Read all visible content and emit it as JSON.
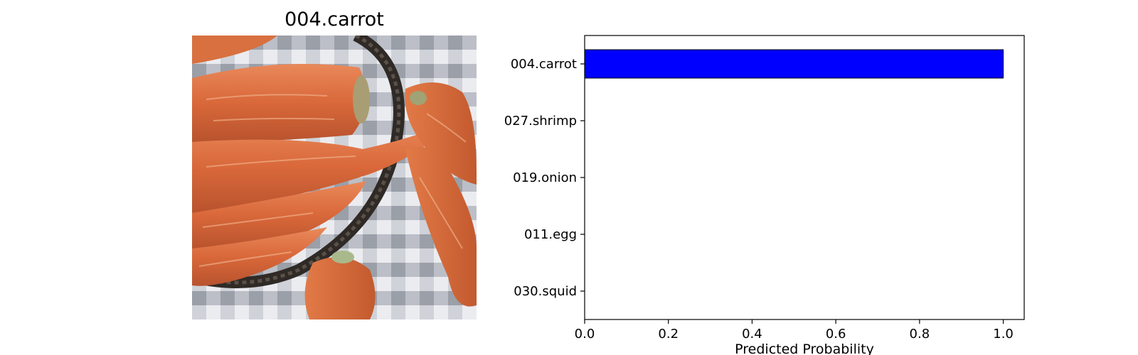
{
  "image_panel": {
    "title": "004.carrot"
  },
  "chart_data": {
    "type": "bar",
    "orientation": "horizontal",
    "categories": [
      "004.carrot",
      "027.shrimp",
      "019.onion",
      "011.egg",
      "030.squid"
    ],
    "values": [
      1.0,
      0.0,
      0.0,
      0.0,
      0.0
    ],
    "title": "",
    "xlabel": "Predicted Probability",
    "ylabel": "",
    "xlim": [
      0,
      1.05
    ],
    "xticks": [
      "0.0",
      "0.2",
      "0.4",
      "0.6",
      "0.8",
      "1.0"
    ],
    "bar_color": "#0000ff",
    "edge_color": "#000000",
    "grid": false
  }
}
